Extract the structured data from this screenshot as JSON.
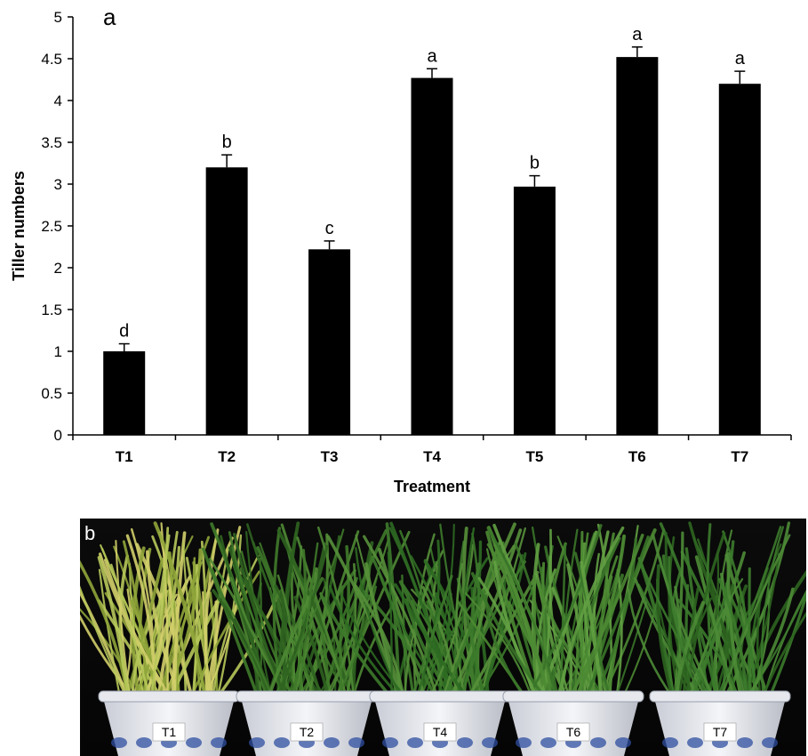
{
  "chart_data": {
    "type": "bar",
    "panel_label": "a",
    "categories": [
      "T1",
      "T2",
      "T3",
      "T4",
      "T5",
      "T6",
      "T7"
    ],
    "values": [
      1.0,
      3.2,
      2.22,
      4.27,
      2.97,
      4.52,
      4.2
    ],
    "errors": [
      0.09,
      0.15,
      0.1,
      0.11,
      0.13,
      0.12,
      0.15
    ],
    "significance": [
      "d",
      "b",
      "c",
      "a",
      "b",
      "a",
      "a"
    ],
    "xlabel": "Treatment",
    "ylabel": "Tiller numbers",
    "ylim": [
      0,
      5
    ],
    "yticks": [
      "0",
      "0.5",
      "1",
      "1.5",
      "2",
      "2.5",
      "3",
      "3.5",
      "4",
      "4.5",
      "5"
    ],
    "bar_color": "#000000",
    "grid": false
  },
  "photo": {
    "panel_label": "b",
    "pot_labels": [
      "T1",
      "T2",
      "T4",
      "T6",
      "T7"
    ]
  }
}
